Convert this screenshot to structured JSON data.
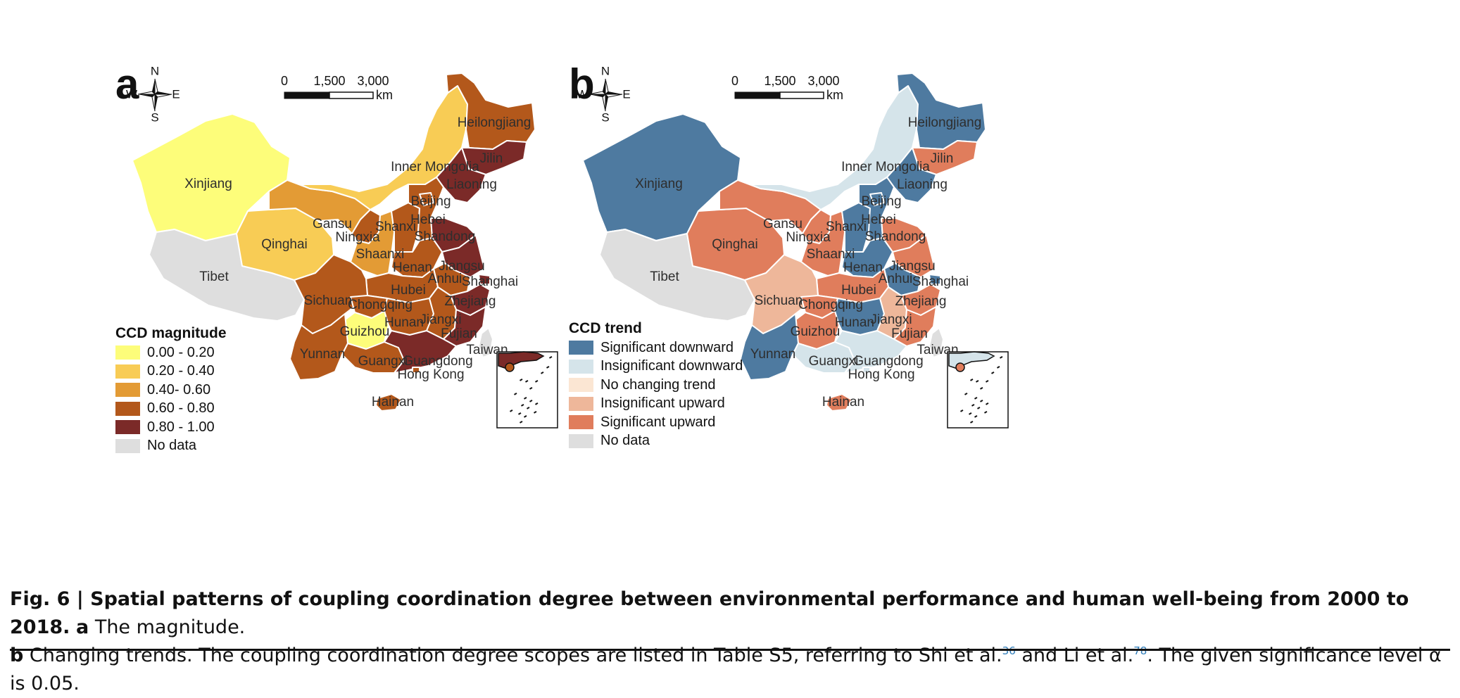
{
  "panels": [
    {
      "letter": "a",
      "compass": {
        "n": "N",
        "s": "S",
        "e": "E",
        "w": "W"
      },
      "scale": {
        "ticks": [
          "0",
          "1,500",
          "3,000"
        ],
        "unit": "km"
      },
      "legend": {
        "title": "CCD magnitude",
        "items": [
          {
            "label": "0.00 - 0.20",
            "color": "#fdfd7a"
          },
          {
            "label": "0.20 - 0.40",
            "color": "#f8cc55"
          },
          {
            "label": "0.40- 0.60",
            "color": "#e39b35"
          },
          {
            "label": "0.60 - 0.80",
            "color": "#b3581b"
          },
          {
            "label": "0.80 - 1.00",
            "color": "#7b2a28"
          },
          {
            "label": "No data",
            "color": "#dedede"
          }
        ]
      },
      "regions": {
        "Xinjiang": "#fdfd7a",
        "Tibet": "#dedede",
        "Qinghai": "#f8cc55",
        "Gansu": "#e39b35",
        "Inner Mongolia": "#f8cc55",
        "Heilongjiang": "#b3581b",
        "Jilin": "#7b2a28",
        "Liaoning": "#7b2a28",
        "Ningxia": "#b3581b",
        "Shaanxi": "#e39b35",
        "Shanxi": "#b3581b",
        "Hebei": "#b3581b",
        "Beijing": "#b3581b",
        "Shandong": "#7b2a28",
        "Henan": "#b3581b",
        "Jiangsu": "#7b2a28",
        "Shanghai": "#7b2a28",
        "Anhui": "#b3581b",
        "Zhejiang": "#7b2a28",
        "Hubei": "#b3581b",
        "Sichuan": "#b3581b",
        "Chongqing": "#b3581b",
        "Guizhou": "#fdfd7a",
        "Hunan": "#b3581b",
        "Jiangxi": "#b3581b",
        "Fujian": "#7b2a28",
        "Yunnan": "#b3581b",
        "Guangxi": "#b3581b",
        "Guangdong": "#7b2a28",
        "Hong Kong": "#b3581b",
        "Hainan": "#b3581b",
        "Taiwan": "#dedede"
      }
    },
    {
      "letter": "b",
      "compass": {
        "n": "N",
        "s": "S",
        "e": "E",
        "w": "W"
      },
      "scale": {
        "ticks": [
          "0",
          "1,500",
          "3,000"
        ],
        "unit": "km"
      },
      "legend": {
        "title": "CCD trend",
        "items": [
          {
            "label": "Significant downward",
            "color": "#4e7aa0"
          },
          {
            "label": "Insignificant downward",
            "color": "#d5e4ea"
          },
          {
            "label": "No changing trend",
            "color": "#fbe6d3"
          },
          {
            "label": "Insignificant upward",
            "color": "#eeb79a"
          },
          {
            "label": "Significant upward",
            "color": "#e07d5c"
          },
          {
            "label": "No data",
            "color": "#dedede"
          }
        ]
      },
      "regions": {
        "Xinjiang": "#4e7aa0",
        "Tibet": "#dedede",
        "Qinghai": "#e07d5c",
        "Gansu": "#e07d5c",
        "Inner Mongolia": "#d5e4ea",
        "Heilongjiang": "#4e7aa0",
        "Jilin": "#e07d5c",
        "Liaoning": "#4e7aa0",
        "Ningxia": "#e07d5c",
        "Shaanxi": "#e07d5c",
        "Shanxi": "#4e7aa0",
        "Hebei": "#4e7aa0",
        "Beijing": "#4e7aa0",
        "Shandong": "#e07d5c",
        "Henan": "#4e7aa0",
        "Jiangsu": "#e07d5c",
        "Shanghai": "#4e7aa0",
        "Anhui": "#4e7aa0",
        "Zhejiang": "#e07d5c",
        "Hubei": "#e07d5c",
        "Sichuan": "#eeb79a",
        "Chongqing": "#e07d5c",
        "Guizhou": "#e07d5c",
        "Hunan": "#4e7aa0",
        "Jiangxi": "#eeb79a",
        "Fujian": "#e07d5c",
        "Yunnan": "#4e7aa0",
        "Guangxi": "#d5e4ea",
        "Guangdong": "#d5e4ea",
        "Hong Kong": "#d5e4ea",
        "Hainan": "#e07d5c",
        "Taiwan": "#dedede"
      }
    }
  ],
  "caption": {
    "line1_bold": "Fig. 6 | Spatial patterns of coupling coordination degree between environmental performance and human well-being from 2000 to 2018.",
    "line1_a": "a",
    "line1_rest": "The magnitude.",
    "line2_b": "b",
    "line2_rest_1": "Changing trends. The coupling coordination degree scopes are listed in Table S5, referring to Shi et al.",
    "ref1": "36",
    "line2_rest_2": "and Li et al.",
    "ref2": "78",
    "line2_rest_3": ". The given significance level α is 0.05."
  }
}
